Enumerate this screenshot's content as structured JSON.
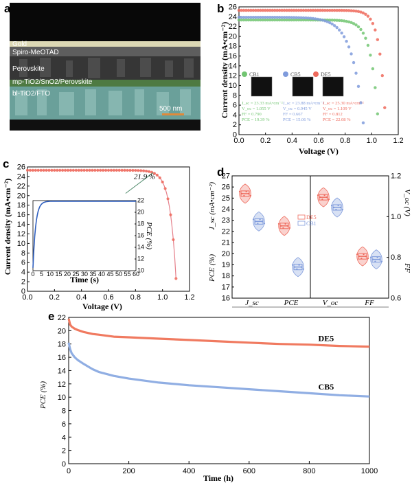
{
  "panels": {
    "a": {
      "label": "a",
      "layers": [
        "Gold",
        "Spiro-MeOTAD",
        "Perovskite",
        "mp-TiO2/SnO2/Perovskite",
        "bl-TiO2/FTO"
      ],
      "scale_bar": "500 nm"
    },
    "b": {
      "label": "b"
    },
    "c": {
      "label": "c"
    },
    "d": {
      "label": "d"
    },
    "e": {
      "label": "e"
    }
  },
  "colors": {
    "CB1": "#72c572",
    "CB5": "#7f9bdc",
    "DE5": "#ee6a5c",
    "CB5_line": "#90aee3",
    "DE5_line": "#f07a60"
  },
  "chart_data": [
    {
      "panel": "b",
      "type": "scatter",
      "xlabel": "Voltage (V)",
      "ylabel": "Current density (mA•cm⁻²)",
      "xlim": [
        0,
        1.2
      ],
      "ylim": [
        0,
        26
      ],
      "xticks": [
        "0.0",
        "0.2",
        "0.4",
        "0.6",
        "0.8",
        "1.0",
        "1.2"
      ],
      "yticks": [
        "0",
        "2",
        "4",
        "6",
        "8",
        "10",
        "12",
        "14",
        "16",
        "18",
        "20",
        "22",
        "24",
        "26"
      ],
      "legend": [
        "CB1",
        "CB5",
        "DE5"
      ],
      "stats": [
        {
          "name": "CB1",
          "lines": [
            "J_sc = 23.33 mA•cm⁻²",
            "V_oc = 1.055 V",
            "FF = 0.790",
            "PCE = 19.39 %"
          ]
        },
        {
          "name": "CB5",
          "lines": [
            "J_sc = 23.88 mA•cm⁻²",
            "V_oc = 0.945 V",
            "FF = 0.667",
            "PCE = 15.06 %"
          ]
        },
        {
          "name": "DE5",
          "lines": [
            "J_sc = 25.30 mA•cm⁻²",
            "V_oc = 1.109 V",
            "FF = 0.812",
            "PCE = 22.08 %"
          ]
        }
      ],
      "series": [
        {
          "name": "CB1",
          "jsc": 23.33,
          "voc": 1.055,
          "n": 0.055
        },
        {
          "name": "CB5",
          "jsc": 23.88,
          "voc": 0.945,
          "n": 0.085
        },
        {
          "name": "DE5",
          "jsc": 25.3,
          "voc": 1.109,
          "n": 0.045
        }
      ]
    },
    {
      "panel": "c",
      "type": "scatter",
      "xlabel": "Voltage (V)",
      "ylabel": "Current density (mA•cm⁻²)",
      "xlim": [
        0,
        1.2
      ],
      "ylim": [
        0,
        26
      ],
      "xticks": [
        "0.0",
        "0.2",
        "0.4",
        "0.6",
        "0.8",
        "1.0",
        "1.2"
      ],
      "yticks": [
        "0",
        "2",
        "4",
        "6",
        "8",
        "10",
        "12",
        "14",
        "16",
        "18",
        "20",
        "22",
        "24",
        "26"
      ],
      "annotation": "21.9 %",
      "series": [
        {
          "name": "DE5",
          "jsc": 25.3,
          "voc": 1.105,
          "n": 0.045
        }
      ],
      "inset": {
        "xlabel": "Time (s)",
        "ylabel": "PCE (%)",
        "xlim": [
          0,
          60
        ],
        "ylim": [
          10,
          22
        ],
        "xticks": [
          "0",
          "5",
          "10",
          "15",
          "20",
          "25",
          "30",
          "35",
          "40",
          "45",
          "50",
          "55",
          "60"
        ],
        "yticks": [
          "10",
          "12",
          "14",
          "16",
          "18",
          "20",
          "22"
        ],
        "plateau": 21.9
      }
    },
    {
      "panel": "d",
      "type": "scatter",
      "left_ylabel": "J_sc (mA•cm⁻²)",
      "left_ylabel2": "PCE (%)",
      "right_ylabel": "V_oc (V)",
      "right_ylabel2": "FF",
      "left_yticks": [
        "16",
        "17",
        "18",
        "19",
        "20",
        "21",
        "22",
        "23",
        "24",
        "25",
        "26",
        "27"
      ],
      "right_yticks": [
        "0.6",
        "0.8",
        "1.0",
        "1.2"
      ],
      "categories": [
        "J_sc",
        "PCE",
        "V_oc",
        "FF"
      ],
      "legend": [
        "DE5",
        "CB1"
      ],
      "groups": [
        {
          "category": "J_sc",
          "series": "DE5",
          "mean": 25.4,
          "axis": "left"
        },
        {
          "category": "J_sc",
          "series": "CB1",
          "mean": 22.9,
          "axis": "left"
        },
        {
          "category": "PCE",
          "series": "DE5",
          "mean": 22.5,
          "axis": "left"
        },
        {
          "category": "PCE",
          "series": "CB1",
          "mean": 18.8,
          "axis": "left"
        },
        {
          "category": "V_oc",
          "series": "DE5",
          "mean": 1.095,
          "axis": "right"
        },
        {
          "category": "V_oc",
          "series": "CB1",
          "mean": 1.045,
          "axis": "right"
        },
        {
          "category": "FF",
          "series": "DE5",
          "mean": 0.805,
          "axis": "right"
        },
        {
          "category": "FF",
          "series": "CB1",
          "mean": 0.79,
          "axis": "right"
        }
      ]
    },
    {
      "panel": "e",
      "type": "line",
      "xlabel": "Time (h)",
      "ylabel": "PCE (%)",
      "xlim": [
        0,
        1000
      ],
      "ylim": [
        0,
        22
      ],
      "xticks": [
        "0",
        "200",
        "400",
        "600",
        "800",
        "1000"
      ],
      "yticks": [
        "0",
        "2",
        "4",
        "6",
        "8",
        "10",
        "12",
        "14",
        "16",
        "18",
        "20",
        "22"
      ],
      "series": [
        {
          "name": "DE5",
          "x": [
            0,
            5,
            10,
            20,
            30,
            50,
            80,
            100,
            150,
            200,
            300,
            400,
            500,
            600,
            700,
            800,
            900,
            1000
          ],
          "values": [
            21.8,
            20.9,
            20.6,
            20.3,
            20.1,
            19.8,
            19.5,
            19.4,
            19.1,
            19.0,
            18.8,
            18.6,
            18.4,
            18.2,
            18.0,
            17.9,
            17.7,
            17.6
          ]
        },
        {
          "name": "CB5",
          "x": [
            0,
            5,
            10,
            20,
            30,
            50,
            80,
            100,
            150,
            200,
            300,
            400,
            500,
            600,
            700,
            800,
            900,
            1000
          ],
          "values": [
            18.2,
            17.2,
            16.6,
            16.0,
            15.6,
            15.0,
            14.2,
            13.8,
            13.2,
            12.8,
            12.2,
            11.8,
            11.5,
            11.2,
            10.9,
            10.6,
            10.3,
            10.1
          ]
        }
      ]
    }
  ]
}
